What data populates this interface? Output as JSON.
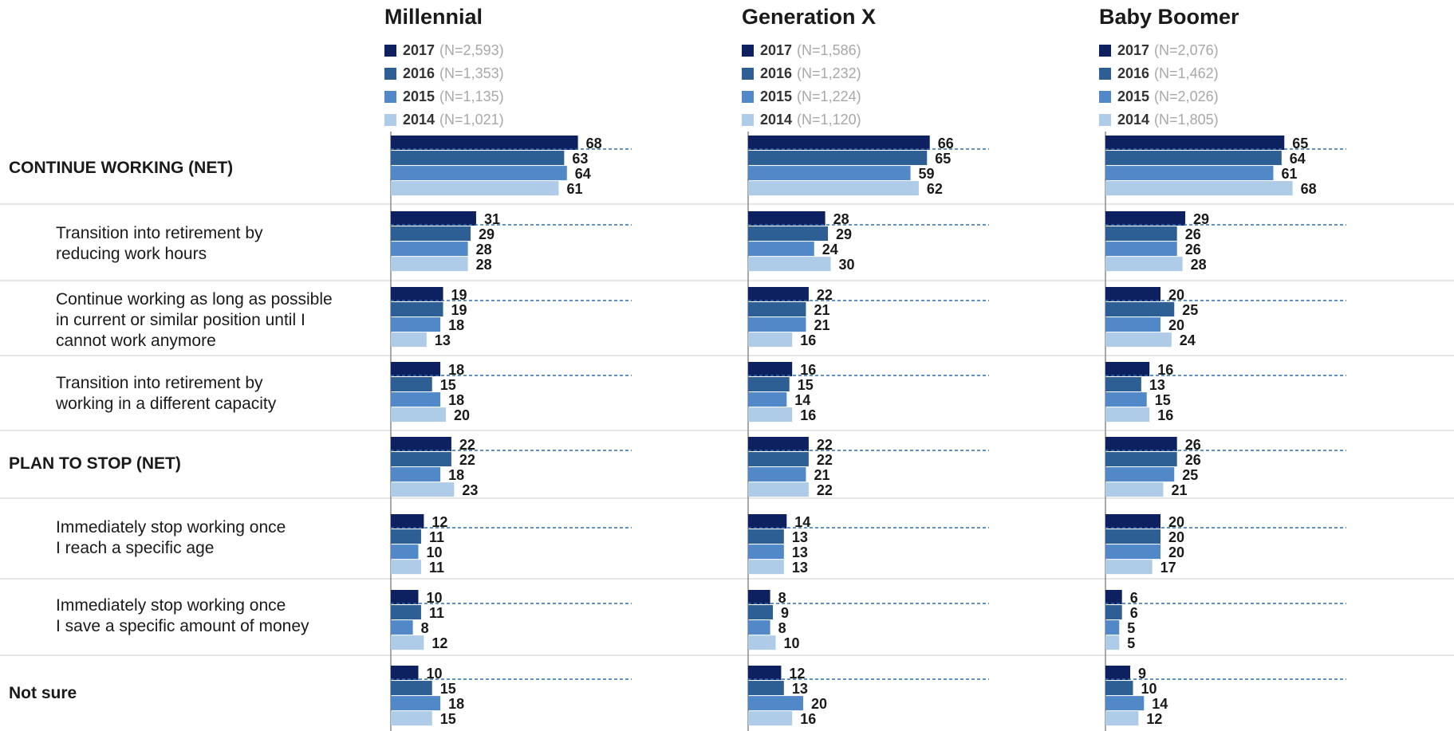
{
  "chart_data": {
    "type": "bar",
    "orientation": "horizontal",
    "categories": [
      "CONTINUE WORKING (NET)",
      "Transition into retirement by reducing work hours",
      "Continue working as long as possible in current or similar position until I cannot work anymore",
      "Transition into retirement by working in a different capacity",
      "PLAN TO STOP (NET)",
      "Immediately stop working once I reach a specific age",
      "Immediately stop working once I save a specific amount of money",
      "Not sure"
    ],
    "category_lines": [
      [
        "CONTINUE WORKING (NET)"
      ],
      [
        "Transition into retirement by",
        "reducing work hours"
      ],
      [
        "Continue working as long as possible",
        "in current or similar position until I",
        "cannot work anymore"
      ],
      [
        "Transition into retirement by",
        "working in a different capacity"
      ],
      [
        "PLAN TO STOP (NET)"
      ],
      [
        "Immediately stop working once",
        "I reach a specific age"
      ],
      [
        "Immediately stop working once",
        "I save a specific amount of money"
      ],
      [
        "Not sure"
      ]
    ],
    "category_is_net": [
      true,
      false,
      false,
      false,
      true,
      false,
      false,
      true
    ],
    "series_colors": {
      "2017": "#0d2160",
      "2016": "#2e5f94",
      "2015": "#5189c8",
      "2014": "#aecbe8"
    },
    "reference_line_color": "#2e6db0",
    "panels": [
      {
        "title": "Millennial",
        "series": [
          {
            "name": "2017",
            "n": "(N=2,593)",
            "values": [
              68,
              31,
              19,
              18,
              22,
              12,
              10,
              10
            ]
          },
          {
            "name": "2016",
            "n": "(N=1,353)",
            "values": [
              63,
              29,
              19,
              15,
              22,
              11,
              11,
              15
            ]
          },
          {
            "name": "2015",
            "n": "(N=1,135)",
            "values": [
              64,
              28,
              18,
              18,
              18,
              10,
              8,
              18
            ]
          },
          {
            "name": "2014",
            "n": "(N=1,021)",
            "values": [
              61,
              28,
              13,
              20,
              23,
              11,
              12,
              15
            ]
          }
        ]
      },
      {
        "title": "Generation X",
        "series": [
          {
            "name": "2017",
            "n": "(N=1,586)",
            "values": [
              66,
              28,
              22,
              16,
              22,
              14,
              8,
              12
            ]
          },
          {
            "name": "2016",
            "n": "(N=1,232)",
            "values": [
              65,
              29,
              21,
              15,
              22,
              13,
              9,
              13
            ]
          },
          {
            "name": "2015",
            "n": "(N=1,224)",
            "values": [
              59,
              24,
              21,
              14,
              21,
              13,
              8,
              20
            ]
          },
          {
            "name": "2014",
            "n": "(N=1,120)",
            "values": [
              62,
              30,
              16,
              16,
              22,
              13,
              10,
              16
            ]
          }
        ]
      },
      {
        "title": "Baby Boomer",
        "series": [
          {
            "name": "2017",
            "n": "(N=2,076)",
            "values": [
              65,
              29,
              20,
              16,
              26,
              20,
              6,
              9
            ]
          },
          {
            "name": "2016",
            "n": "(N=1,462)",
            "values": [
              64,
              26,
              25,
              13,
              26,
              20,
              6,
              10
            ]
          },
          {
            "name": "2015",
            "n": "(N=2,026)",
            "values": [
              61,
              26,
              20,
              15,
              25,
              20,
              5,
              14
            ]
          },
          {
            "name": "2014",
            "n": "(N=1,805)",
            "values": [
              68,
              28,
              24,
              16,
              21,
              17,
              5,
              12
            ]
          }
        ]
      }
    ]
  }
}
